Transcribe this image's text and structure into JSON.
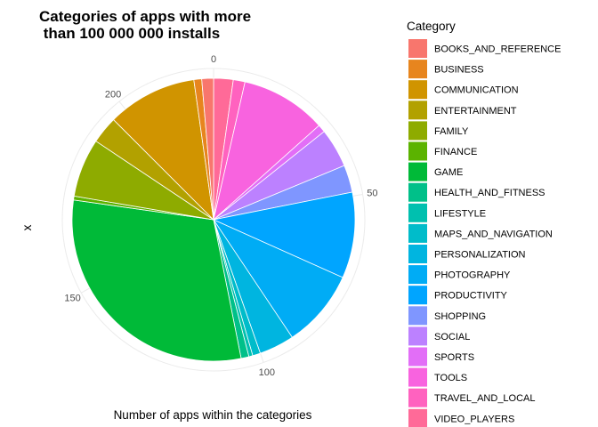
{
  "chart_data": {
    "type": "pie",
    "title_lines": [
      "Categories of apps with more",
      " than 100 000 000 installs"
    ],
    "xlabel": "Number of apps within the categories",
    "ylabel": "x",
    "theta_ticks": [
      {
        "value": 0,
        "label": "0"
      },
      {
        "value": 50,
        "label": "50"
      },
      {
        "value": 100,
        "label": "100"
      },
      {
        "value": 150,
        "label": "150"
      },
      {
        "value": 200,
        "label": "200"
      }
    ],
    "total": 224,
    "legend": {
      "title": "Category",
      "position": "right"
    },
    "categories": [
      "BOOKS_AND_REFERENCE",
      "BUSINESS",
      "COMMUNICATION",
      "ENTERTAINMENT",
      "FAMILY",
      "FINANCE",
      "GAME",
      "HEALTH_AND_FITNESS",
      "LIFESTYLE",
      "MAPS_AND_NAVIGATION",
      "PERSONALIZATION",
      "PHOTOGRAPHY",
      "PRODUCTIVITY",
      "SHOPPING",
      "SOCIAL",
      "SPORTS",
      "TOOLS",
      "TRAVEL_AND_LOCAL",
      "VIDEO_PLAYERS"
    ],
    "colors": [
      "#F8766D",
      "#E7851E",
      "#D09400",
      "#B2A100",
      "#8EAB00",
      "#5BB300",
      "#00BA38",
      "#00C089",
      "#00C0AF",
      "#00BCCA",
      "#00B5E0",
      "#00ACF5",
      "#00A5FF",
      "#7F96FF",
      "#BC81FF",
      "#E26EF7",
      "#F863DF",
      "#FF62BF",
      "#FF6A98"
    ],
    "slices": [
      {
        "category": "VIDEO_PLAYERS",
        "value": 5
      },
      {
        "category": "TRAVEL_AND_LOCAL",
        "value": 3
      },
      {
        "category": "TOOLS",
        "value": 22
      },
      {
        "category": "SPORTS",
        "value": 2
      },
      {
        "category": "SOCIAL",
        "value": 10
      },
      {
        "category": "SHOPPING",
        "value": 7
      },
      {
        "category": "PRODUCTIVITY",
        "value": 22
      },
      {
        "category": "PHOTOGRAPHY",
        "value": 20
      },
      {
        "category": "PERSONALIZATION",
        "value": 9
      },
      {
        "category": "MAPS_AND_NAVIGATION",
        "value": 2
      },
      {
        "category": "LIFESTYLE",
        "value": 1
      },
      {
        "category": "HEALTH_AND_FITNESS",
        "value": 2
      },
      {
        "category": "GAME",
        "value": 68
      },
      {
        "category": "FINANCE",
        "value": 1
      },
      {
        "category": "FAMILY",
        "value": 15
      },
      {
        "category": "ENTERTAINMENT",
        "value": 7
      },
      {
        "category": "COMMUNICATION",
        "value": 23
      },
      {
        "category": "BUSINESS",
        "value": 2
      },
      {
        "category": "BOOKS_AND_REFERENCE",
        "value": 3
      }
    ]
  }
}
